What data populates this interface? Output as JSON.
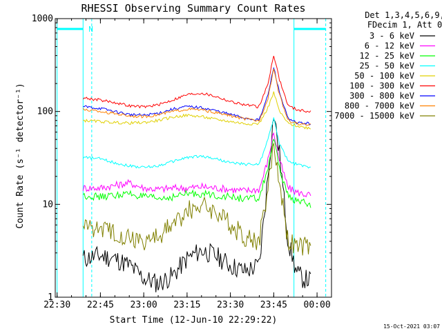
{
  "chart_data": {
    "type": "line",
    "title": "RHESSI Observing Summary Count Rates",
    "xlabel": "Start Time (12-Jun-10 22:29:22)",
    "ylabel": "Count Rate (s⁻¹ detector⁻¹)",
    "y_scale": "log",
    "ylim": [
      1,
      1000
    ],
    "xlim": [
      "22:29:22",
      "00:05:00"
    ],
    "x_ticks": [
      "22:30",
      "22:45",
      "23:00",
      "23:15",
      "23:30",
      "23:45",
      "00:00"
    ],
    "y_ticks": [
      "1",
      "10",
      "100",
      "1000"
    ],
    "grid": false,
    "legend_position": "top-right",
    "legend_header": [
      "Det 1,3,4,5,6,9,",
      "FDecim 1, Att 0"
    ],
    "footer_date": "15-Oct-2021 03:07",
    "orbit_flags": {
      "color": "#00ffff",
      "markers": [
        {
          "time": "22:30:00",
          "style": "solid"
        },
        {
          "time": "22:39:00",
          "style": "solid"
        },
        {
          "time": "22:42:00",
          "style": "dashed"
        },
        {
          "time": "23:52:00",
          "style": "solid"
        },
        {
          "time": "00:03:00",
          "style": "dashed"
        }
      ],
      "bars": [
        {
          "start": "22:30:00",
          "end": "22:39:00",
          "label": "N"
        },
        {
          "start": "23:52:00",
          "end": "00:03:00",
          "label": ""
        }
      ]
    },
    "series": [
      {
        "name": "3 - 6 keV",
        "color": "#000000",
        "times": [
          "22:39",
          "22:45",
          "22:50",
          "22:55",
          "23:00",
          "23:05",
          "23:10",
          "23:15",
          "23:20",
          "23:25",
          "23:30",
          "23:35",
          "23:40",
          "23:43",
          "23:45",
          "23:47",
          "23:50",
          "23:53",
          "23:55",
          "23:58"
        ],
        "values": [
          2.6,
          2.8,
          2.6,
          2.2,
          1.6,
          1.4,
          1.7,
          2.6,
          3.2,
          2.8,
          2.2,
          1.9,
          2.2,
          20,
          95,
          35,
          4,
          1.8,
          1.6,
          1.5
        ]
      },
      {
        "name": "6 - 12 keV",
        "color": "#ff00ff",
        "times": [
          "22:39",
          "22:45",
          "22:50",
          "22:55",
          "23:00",
          "23:05",
          "23:10",
          "23:15",
          "23:20",
          "23:25",
          "23:30",
          "23:35",
          "23:40",
          "23:43",
          "23:45",
          "23:47",
          "23:50",
          "23:53",
          "23:55",
          "23:58"
        ],
        "values": [
          15,
          15,
          16,
          17,
          15,
          14.5,
          15,
          15,
          15.5,
          15,
          14.5,
          14,
          14.5,
          30,
          60,
          30,
          15,
          13.5,
          13,
          12.5
        ]
      },
      {
        "name": "12 - 25 keV",
        "color": "#00ff00",
        "times": [
          "22:39",
          "22:45",
          "22:50",
          "22:55",
          "23:00",
          "23:05",
          "23:10",
          "23:15",
          "23:20",
          "23:25",
          "23:30",
          "23:35",
          "23:40",
          "23:43",
          "23:45",
          "23:47",
          "23:50",
          "23:53",
          "23:55",
          "23:58"
        ],
        "values": [
          12.5,
          12,
          12.5,
          13,
          12,
          11.5,
          12,
          13,
          13,
          12.5,
          12,
          11.5,
          11.5,
          25,
          50,
          24,
          12,
          11,
          10.5,
          10
        ]
      },
      {
        "name": "25 - 50 keV",
        "color": "#00ffff",
        "times": [
          "22:39",
          "22:45",
          "22:50",
          "22:55",
          "23:00",
          "23:05",
          "23:10",
          "23:15",
          "23:20",
          "23:25",
          "23:30",
          "23:35",
          "23:40",
          "23:43",
          "23:45",
          "23:47",
          "23:50",
          "23:53",
          "23:55",
          "23:58"
        ],
        "values": [
          32,
          31,
          28,
          26,
          25,
          26,
          29,
          32,
          33,
          31,
          28,
          27,
          27,
          50,
          85,
          45,
          29,
          27,
          26,
          25
        ]
      },
      {
        "name": "50 - 100 keV",
        "color": "#e0d000",
        "times": [
          "22:39",
          "22:45",
          "22:50",
          "22:55",
          "23:00",
          "23:05",
          "23:10",
          "23:15",
          "23:20",
          "23:25",
          "23:30",
          "23:35",
          "23:40",
          "23:43",
          "23:45",
          "23:47",
          "23:50",
          "23:53",
          "23:55",
          "23:58"
        ],
        "values": [
          80,
          78,
          76,
          75,
          76,
          80,
          87,
          91,
          88,
          82,
          78,
          74,
          74,
          110,
          160,
          100,
          74,
          70,
          68,
          66
        ]
      },
      {
        "name": "100 - 300 keV",
        "color": "#ff0000",
        "times": [
          "22:39",
          "22:45",
          "22:50",
          "22:55",
          "23:00",
          "23:05",
          "23:10",
          "23:15",
          "23:20",
          "23:25",
          "23:30",
          "23:35",
          "23:40",
          "23:43",
          "23:45",
          "23:47",
          "23:50",
          "23:53",
          "23:55",
          "23:58"
        ],
        "values": [
          140,
          133,
          125,
          115,
          112,
          118,
          133,
          152,
          158,
          145,
          128,
          118,
          112,
          200,
          410,
          220,
          115,
          105,
          102,
          100
        ]
      },
      {
        "name": "300 - 800 keV",
        "color": "#0000ff",
        "times": [
          "22:39",
          "22:45",
          "22:50",
          "22:55",
          "23:00",
          "23:05",
          "23:10",
          "23:15",
          "23:20",
          "23:25",
          "23:30",
          "23:35",
          "23:40",
          "23:43",
          "23:45",
          "23:47",
          "23:50",
          "23:53",
          "23:55",
          "23:58"
        ],
        "values": [
          113,
          108,
          100,
          93,
          91,
          96,
          106,
          113,
          110,
          102,
          93,
          85,
          81,
          150,
          300,
          160,
          82,
          76,
          75,
          74
        ]
      },
      {
        "name": "800 - 7000 keV",
        "color": "#ff8000",
        "times": [
          "22:39",
          "22:45",
          "22:50",
          "22:55",
          "23:00",
          "23:05",
          "23:10",
          "23:15",
          "23:20",
          "23:25",
          "23:30",
          "23:35",
          "23:40",
          "23:43",
          "23:45",
          "23:47",
          "23:50",
          "23:53",
          "23:55",
          "23:58"
        ],
        "values": [
          105,
          100,
          95,
          90,
          88,
          92,
          100,
          106,
          104,
          97,
          90,
          83,
          79,
          140,
          290,
          150,
          80,
          74,
          72,
          71
        ]
      },
      {
        "name": "7000 - 15000 keV",
        "color": "#808000",
        "times": [
          "22:39",
          "22:45",
          "22:50",
          "22:55",
          "23:00",
          "23:05",
          "23:10",
          "23:15",
          "23:20",
          "23:25",
          "23:30",
          "23:35",
          "23:40",
          "23:43",
          "23:45",
          "23:47",
          "23:50",
          "23:53",
          "23:55",
          "23:58"
        ],
        "values": [
          6,
          5.5,
          5,
          4.5,
          4,
          4.5,
          6,
          8.5,
          10,
          8.5,
          6,
          4.5,
          4,
          15,
          45,
          18,
          4,
          3.5,
          3.5,
          3.5
        ]
      }
    ]
  }
}
